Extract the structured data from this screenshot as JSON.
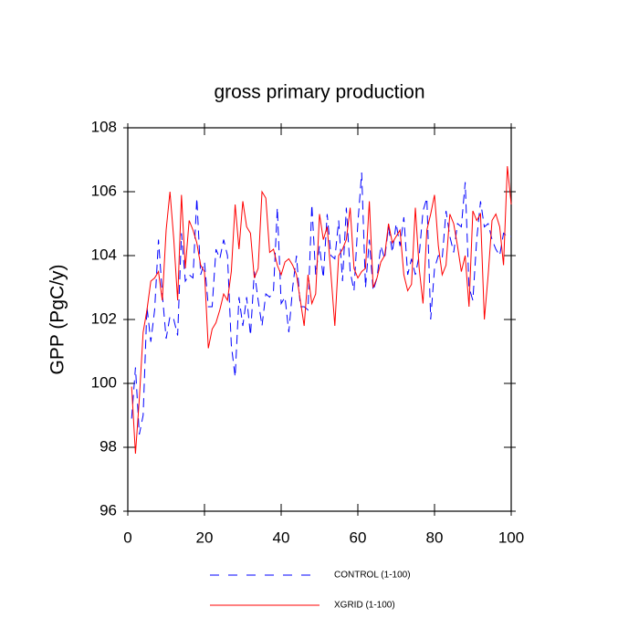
{
  "chart_data": {
    "type": "line",
    "title": "gross primary production",
    "y_label": "GPP  (PgC/y)",
    "x": [
      1,
      2,
      3,
      4,
      5,
      6,
      7,
      8,
      9,
      10,
      11,
      12,
      13,
      14,
      15,
      16,
      17,
      18,
      19,
      20,
      21,
      22,
      23,
      24,
      25,
      26,
      27,
      28,
      29,
      30,
      31,
      32,
      33,
      34,
      35,
      36,
      37,
      38,
      39,
      40,
      41,
      42,
      43,
      44,
      45,
      46,
      47,
      48,
      49,
      50,
      51,
      52,
      53,
      54,
      55,
      56,
      57,
      58,
      59,
      60,
      61,
      62,
      63,
      64,
      65,
      66,
      67,
      68,
      69,
      70,
      71,
      72,
      73,
      74,
      75,
      76,
      77,
      78,
      79,
      80,
      81,
      82,
      83,
      84,
      85,
      86,
      87,
      88,
      89,
      90,
      91,
      92,
      93,
      94,
      95,
      96,
      97,
      98,
      99,
      100
    ],
    "series": [
      {
        "name": "CONTROL (1-100)",
        "color": "#0000ff",
        "style": "dashed",
        "values": [
          98.9,
          100.5,
          98.4,
          99.0,
          102.4,
          101.3,
          102.3,
          104.5,
          102.8,
          101.4,
          102.1,
          102.0,
          101.5,
          104.7,
          103.2,
          103.4,
          103.3,
          105.8,
          103.4,
          103.8,
          102.4,
          102.4,
          104.2,
          103.9,
          104.5,
          104.0,
          101.2,
          100.2,
          102.7,
          101.8,
          102.7,
          101.5,
          103.5,
          102.6,
          101.8,
          102.8,
          102.7,
          102.9,
          105.5,
          102.5,
          102.7,
          101.6,
          103.0,
          104.0,
          102.4,
          102.4,
          102.3,
          105.6,
          103.4,
          104.3,
          103.3,
          105.3,
          104.0,
          103.9,
          105.1,
          103.2,
          105.5,
          103.5,
          102.9,
          105.0,
          106.6,
          103.0,
          104.5,
          102.9,
          103.3,
          104.3,
          103.9,
          104.9,
          104.1,
          105.0,
          104.3,
          105.2,
          103.4,
          103.9,
          103.4,
          104.0,
          105.4,
          105.8,
          102.0,
          103.6,
          104.0,
          103.9,
          105.4,
          104.6,
          104.1,
          105.0,
          104.9,
          106.3,
          103.0,
          102.6,
          104.5,
          105.7,
          104.9,
          105.0,
          104.5,
          104.2,
          104.0,
          104.7,
          104.6,
          104.6
        ]
      },
      {
        "name": "XGRID (1-100)",
        "color": "#ff0000",
        "style": "solid",
        "values": [
          99.9,
          97.8,
          99.5,
          101.6,
          102.3,
          103.2,
          103.3,
          103.5,
          102.6,
          104.8,
          106.0,
          104.5,
          102.6,
          105.9,
          103.6,
          105.1,
          104.8,
          104.4,
          103.7,
          103.5,
          101.1,
          101.7,
          101.9,
          102.3,
          102.8,
          102.6,
          103.5,
          105.6,
          104.2,
          105.7,
          104.9,
          104.7,
          103.3,
          103.6,
          106.0,
          105.8,
          104.1,
          104.2,
          103.7,
          103.4,
          103.8,
          103.9,
          103.7,
          103.4,
          102.6,
          101.8,
          103.4,
          102.5,
          102.8,
          105.3,
          104.5,
          104.9,
          103.4,
          101.8,
          104.0,
          104.2,
          104.5,
          105.5,
          103.6,
          103.3,
          103.5,
          103.6,
          105.7,
          103.0,
          103.3,
          103.8,
          104.0,
          105.0,
          104.4,
          104.6,
          104.8,
          103.4,
          102.9,
          103.1,
          105.5,
          103.6,
          102.5,
          104.8,
          105.3,
          105.9,
          104.3,
          103.4,
          103.7,
          105.3,
          105.0,
          104.3,
          103.5,
          104.0,
          102.4,
          105.4,
          105.1,
          105.3,
          102.0,
          103.4,
          105.1,
          105.3,
          104.9,
          103.7,
          106.8,
          105.6
        ]
      }
    ],
    "xlim": [
      0,
      100
    ],
    "xticks": [
      0,
      20,
      40,
      60,
      80,
      100
    ],
    "ylim": [
      96,
      108
    ],
    "yticks": [
      96,
      98,
      100,
      102,
      104,
      106,
      108
    ]
  }
}
